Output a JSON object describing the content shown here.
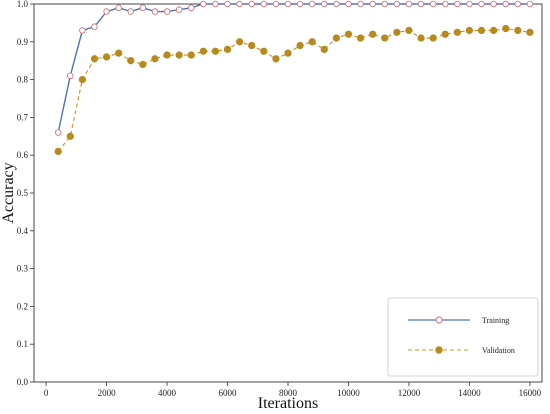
{
  "chart_data": {
    "type": "line",
    "title": "",
    "xlabel": "Iterations",
    "ylabel": "Accuracy",
    "xlim": [
      -400,
      16400
    ],
    "ylim": [
      0.0,
      1.0
    ],
    "xticks": [
      0,
      2000,
      4000,
      6000,
      8000,
      10000,
      12000,
      14000,
      16000
    ],
    "xtick_labels": [
      "0",
      "2000",
      "4000",
      "6000",
      "8000",
      "10000",
      "12000",
      "14000",
      "16000"
    ],
    "yticks": [
      0.0,
      0.1,
      0.2,
      0.3,
      0.4,
      0.5,
      0.6,
      0.7,
      0.8,
      0.9,
      1.0
    ],
    "ytick_labels": [
      "0.0",
      "0.1",
      "0.2",
      "0.3",
      "0.4",
      "0.5",
      "0.6",
      "0.7",
      "0.8",
      "0.9",
      "1.0"
    ],
    "grid": false,
    "legend_position": "bottom-right",
    "x": [
      400,
      800,
      1200,
      1600,
      2000,
      2400,
      2800,
      3200,
      3600,
      4000,
      4400,
      4800,
      5200,
      5600,
      6000,
      6400,
      6800,
      7200,
      7600,
      8000,
      8400,
      8800,
      9200,
      9600,
      10000,
      10400,
      10800,
      11200,
      11600,
      12000,
      12400,
      12800,
      13200,
      13600,
      14000,
      14400,
      14800,
      15200,
      15600,
      16000
    ],
    "series": [
      {
        "name": "Training",
        "color": "#4f74b5",
        "marker_edge": "#d6707a",
        "marker_fill": "#ffffff",
        "line_style": "solid",
        "values": [
          0.66,
          0.81,
          0.93,
          0.94,
          0.98,
          0.99,
          0.98,
          0.99,
          0.98,
          0.98,
          0.985,
          0.99,
          1.0,
          1.0,
          1.0,
          1.0,
          1.0,
          1.0,
          1.0,
          1.0,
          1.0,
          1.0,
          1.0,
          1.0,
          1.0,
          1.0,
          1.0,
          1.0,
          1.0,
          1.0,
          1.0,
          1.0,
          1.0,
          1.0,
          1.0,
          1.0,
          1.0,
          1.0,
          1.0,
          1.0
        ]
      },
      {
        "name": "Validation",
        "color": "#c8901e",
        "marker_edge": "#b88a1e",
        "marker_fill": "#b88a1e",
        "line_style": "dashed",
        "values": [
          0.61,
          0.65,
          0.8,
          0.855,
          0.86,
          0.87,
          0.85,
          0.84,
          0.855,
          0.865,
          0.865,
          0.865,
          0.875,
          0.875,
          0.88,
          0.9,
          0.89,
          0.875,
          0.855,
          0.87,
          0.89,
          0.9,
          0.88,
          0.91,
          0.92,
          0.91,
          0.92,
          0.91,
          0.925,
          0.93,
          0.91,
          0.91,
          0.92,
          0.925,
          0.93,
          0.93,
          0.93,
          0.935,
          0.93,
          0.925
        ]
      }
    ]
  }
}
